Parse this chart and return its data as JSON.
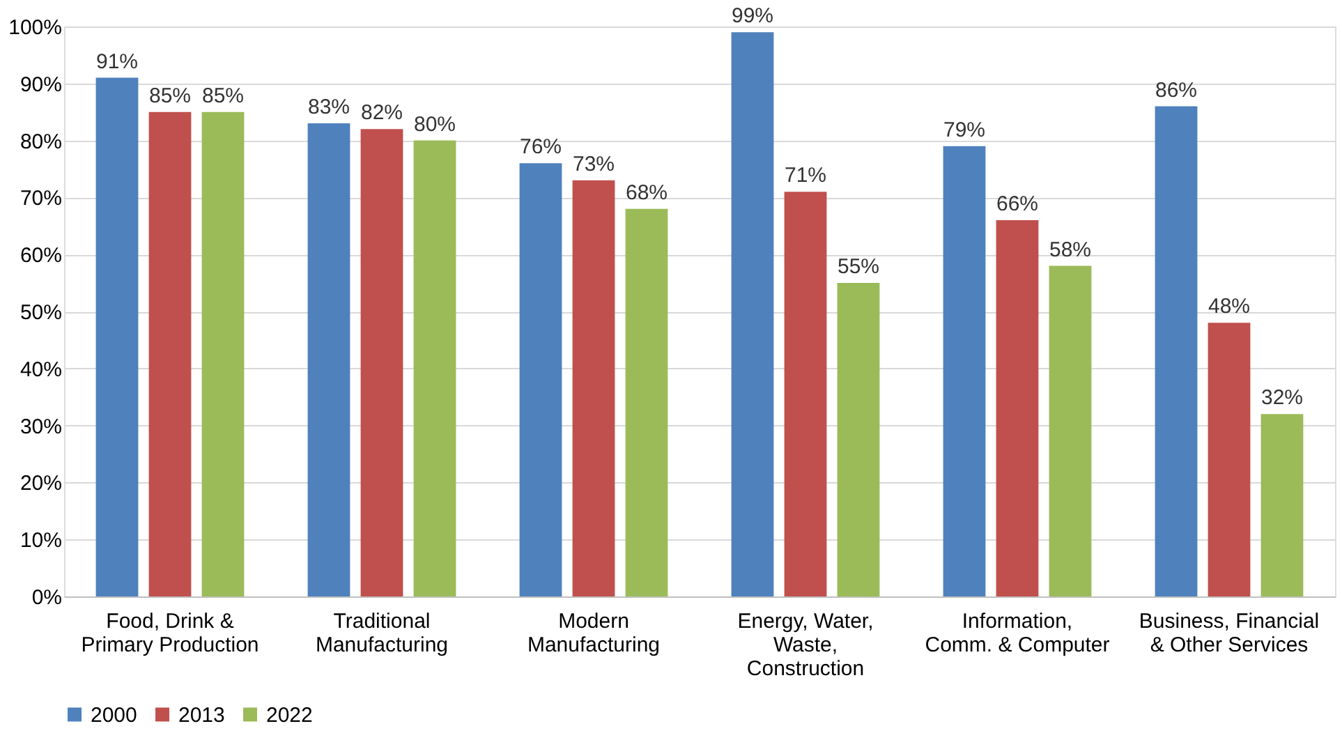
{
  "chart_data": {
    "type": "bar",
    "categories": [
      "Food, Drink &\nPrimary Production",
      "Traditional\nManufacturing",
      "Modern\nManufacturing",
      "Energy, Water,\nWaste,\nConstruction",
      "Information,\nComm. & Computer",
      "Business, Financial\n& Other Services"
    ],
    "series": [
      {
        "name": "2000",
        "color": "#4f81bd",
        "values": [
          91,
          83,
          76,
          99,
          79,
          86
        ],
        "value_labels": [
          "91%",
          "83%",
          "76%",
          "99%",
          "79%",
          "86%"
        ]
      },
      {
        "name": "2013",
        "color": "#c0504d",
        "values": [
          85,
          82,
          73,
          71,
          66,
          48
        ],
        "value_labels": [
          "85%",
          "82%",
          "73%",
          "71%",
          "66%",
          "48%"
        ]
      },
      {
        "name": "2022",
        "color": "#9bbb59",
        "values": [
          85,
          80,
          68,
          55,
          58,
          32
        ],
        "value_labels": [
          "85%",
          "80%",
          "68%",
          "55%",
          "58%",
          "32%"
        ]
      }
    ],
    "ylim": [
      0,
      100
    ],
    "yticks": [
      {
        "value": 0,
        "label": "0%"
      },
      {
        "value": 10,
        "label": "10%"
      },
      {
        "value": 20,
        "label": "20%"
      },
      {
        "value": 30,
        "label": "30%"
      },
      {
        "value": 40,
        "label": "40%"
      },
      {
        "value": 50,
        "label": "50%"
      },
      {
        "value": 60,
        "label": "60%"
      },
      {
        "value": 70,
        "label": "70%"
      },
      {
        "value": 80,
        "label": "80%"
      },
      {
        "value": 90,
        "label": "90%"
      },
      {
        "value": 100,
        "label": "100%"
      }
    ],
    "grid": "y",
    "legend": "bottom"
  }
}
